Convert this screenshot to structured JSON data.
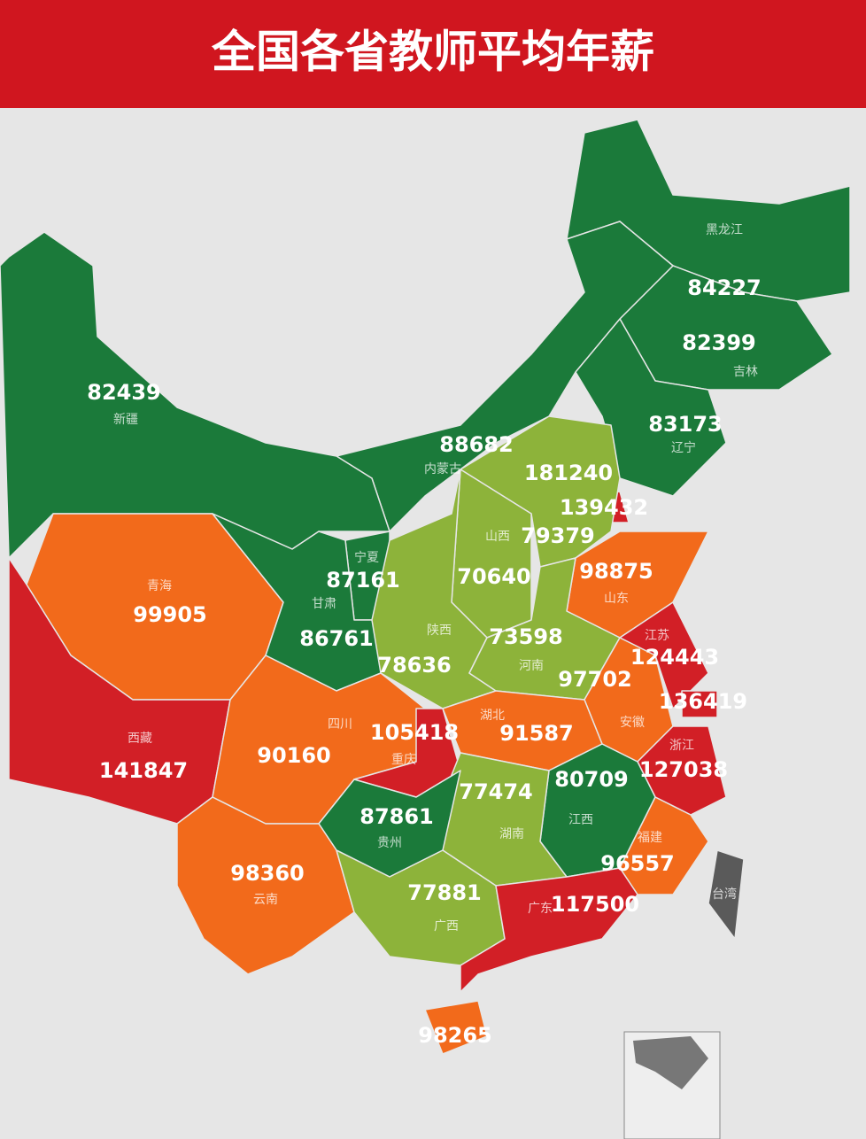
{
  "title": "全国各省教师平均年薪",
  "regions": [
    {
      "name": "黑龙江",
      "value": 84227,
      "color": "#1b7a3a"
    },
    {
      "name": "吉林",
      "value": 82399,
      "color": "#1b7a3a"
    },
    {
      "name": "辽宁",
      "value": 83173,
      "color": "#1b7a3a"
    },
    {
      "name": "内蒙古",
      "value": 88682,
      "color": "#1b7a3a"
    },
    {
      "name": "新疆",
      "value": 82439,
      "color": "#1b7a3a"
    },
    {
      "value": 181240,
      "color": "#d21f26"
    },
    {
      "value": 139432,
      "color": "#d21f26"
    },
    {
      "value": 79379,
      "color": "#8db33a"
    },
    {
      "name": "山西",
      "value": 70640,
      "color": "#8db33a"
    },
    {
      "name": "山东",
      "value": 98875,
      "color": "#f26a1b"
    },
    {
      "name": "青海",
      "value": 99905,
      "color": "#f26a1b"
    },
    {
      "name": "宁夏",
      "value": 87161,
      "color": "#1b7a3a"
    },
    {
      "name": "甘肃",
      "value": 86761,
      "color": "#1b7a3a"
    },
    {
      "name": "陕西",
      "value": 78636,
      "color": "#8db33a"
    },
    {
      "name": "河南",
      "value": 73598,
      "color": "#8db33a"
    },
    {
      "name": "江苏",
      "value": 124443,
      "color": "#d21f26"
    },
    {
      "name": "安徽",
      "value": 97702,
      "color": "#f26a1b"
    },
    {
      "value": 136419,
      "color": "#d21f26"
    },
    {
      "name": "西藏",
      "value": 141847,
      "color": "#d21f26"
    },
    {
      "name": "四川",
      "value": 90160,
      "color": "#f26a1b"
    },
    {
      "name": "重庆",
      "value": 105418,
      "color": "#d21f26"
    },
    {
      "name": "湖北",
      "value": 91587,
      "color": "#f26a1b"
    },
    {
      "name": "浙江",
      "value": 127038,
      "color": "#d21f26"
    },
    {
      "name": "江西",
      "value": 80709,
      "color": "#1b7a3a"
    },
    {
      "name": "湖南",
      "value": 77474,
      "color": "#8db33a"
    },
    {
      "name": "贵州",
      "value": 87861,
      "color": "#1b7a3a"
    },
    {
      "name": "福建",
      "value": 96557,
      "color": "#f26a1b"
    },
    {
      "name": "云南",
      "value": 98360,
      "color": "#f26a1b"
    },
    {
      "name": "广西",
      "value": 77881,
      "color": "#8db33a"
    },
    {
      "name": "广东",
      "value": 117500,
      "color": "#d21f26"
    },
    {
      "value": 98265,
      "color": "#f26a1b"
    },
    {
      "name": "台湾",
      "color": "#5a5a5a"
    }
  ]
}
